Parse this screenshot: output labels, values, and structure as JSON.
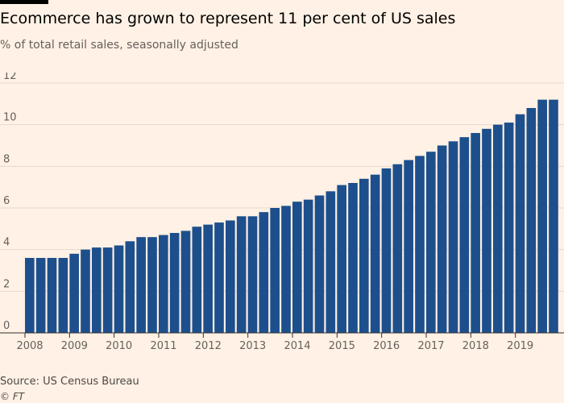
{
  "title": "Ecommerce has grown to represent 11 per cent of US sales",
  "subtitle": "% of total retail sales, seasonally adjusted",
  "source": "Source: US Census Bureau",
  "credit": "© FT",
  "colors": {
    "background": "#fff1e5",
    "bar": "#1d4f8c",
    "grid": "#e6d9ce",
    "axis": "#66605c"
  },
  "chart_data": {
    "type": "bar",
    "xlabel": "",
    "ylabel": "",
    "ylim": [
      0,
      12
    ],
    "yticks": [
      0,
      2,
      4,
      6,
      8,
      10,
      12
    ],
    "xtick_labels": [
      "2008",
      "2009",
      "2010",
      "2011",
      "2012",
      "2013",
      "2014",
      "2015",
      "2016",
      "2017",
      "2018",
      "2019"
    ],
    "categories": [
      "2008 Q1",
      "2008 Q2",
      "2008 Q3",
      "2008 Q4",
      "2009 Q1",
      "2009 Q2",
      "2009 Q3",
      "2009 Q4",
      "2010 Q1",
      "2010 Q2",
      "2010 Q3",
      "2010 Q4",
      "2011 Q1",
      "2011 Q2",
      "2011 Q3",
      "2011 Q4",
      "2012 Q1",
      "2012 Q2",
      "2012 Q3",
      "2012 Q4",
      "2013 Q1",
      "2013 Q2",
      "2013 Q3",
      "2013 Q4",
      "2014 Q1",
      "2014 Q2",
      "2014 Q3",
      "2014 Q4",
      "2015 Q1",
      "2015 Q2",
      "2015 Q3",
      "2015 Q4",
      "2016 Q1",
      "2016 Q2",
      "2016 Q3",
      "2016 Q4",
      "2017 Q1",
      "2017 Q2",
      "2017 Q3",
      "2017 Q4",
      "2018 Q1",
      "2018 Q2",
      "2018 Q3",
      "2018 Q4",
      "2019 Q1",
      "2019 Q2",
      "2019 Q3",
      "2019 Q4"
    ],
    "values": [
      3.6,
      3.6,
      3.6,
      3.6,
      3.8,
      4.0,
      4.1,
      4.1,
      4.2,
      4.4,
      4.6,
      4.6,
      4.7,
      4.8,
      4.9,
      5.1,
      5.2,
      5.3,
      5.4,
      5.6,
      5.6,
      5.8,
      6.0,
      6.1,
      6.3,
      6.4,
      6.6,
      6.8,
      7.1,
      7.2,
      7.4,
      7.6,
      7.9,
      8.1,
      8.3,
      8.5,
      8.7,
      9.0,
      9.2,
      9.4,
      9.6,
      9.8,
      10.0,
      10.1,
      10.5,
      10.8,
      11.2,
      11.2
    ],
    "grid": true,
    "legend": "none"
  }
}
